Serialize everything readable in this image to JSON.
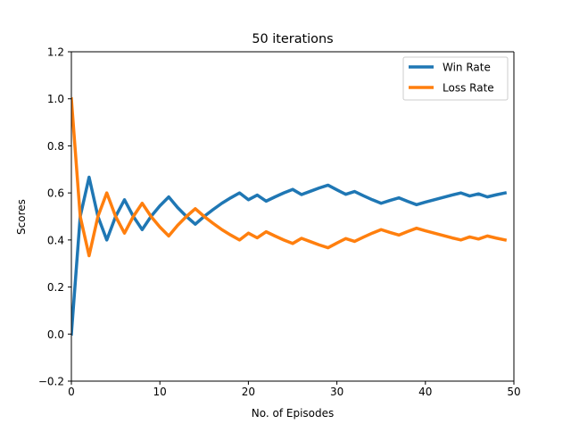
{
  "chart_data": {
    "type": "line",
    "title": "50 iterations",
    "xlabel": "No. of Episodes",
    "ylabel": "Scores",
    "xlim": [
      0,
      50
    ],
    "ylim": [
      -0.2,
      1.2
    ],
    "xticks": [
      0,
      10,
      20,
      30,
      40,
      50
    ],
    "yticks": [
      -0.2,
      0.0,
      0.2,
      0.4,
      0.6,
      0.8,
      1.0,
      1.2
    ],
    "xtick_labels": [
      "0",
      "10",
      "20",
      "30",
      "40",
      "50"
    ],
    "ytick_labels": [
      "−0.2",
      "0.0",
      "0.2",
      "0.4",
      "0.6",
      "0.8",
      "1.0",
      "1.2"
    ],
    "grid": false,
    "legend_position": "top-right",
    "x": [
      0,
      1,
      2,
      3,
      4,
      5,
      6,
      7,
      8,
      9,
      10,
      11,
      12,
      13,
      14,
      15,
      16,
      17,
      18,
      19,
      20,
      21,
      22,
      23,
      24,
      25,
      26,
      27,
      28,
      29,
      30,
      31,
      32,
      33,
      34,
      35,
      36,
      37,
      38,
      39,
      40,
      41,
      42,
      43,
      44,
      45,
      46,
      47,
      48,
      49
    ],
    "series": [
      {
        "name": "Win Rate",
        "color": "#1f77b4",
        "values": [
          0.0,
          0.5,
          0.667,
          0.5,
          0.4,
          0.5,
          0.571,
          0.5,
          0.444,
          0.5,
          0.545,
          0.583,
          0.538,
          0.5,
          0.467,
          0.5,
          0.529,
          0.556,
          0.579,
          0.6,
          0.571,
          0.591,
          0.565,
          0.583,
          0.6,
          0.615,
          0.593,
          0.607,
          0.621,
          0.633,
          0.613,
          0.594,
          0.606,
          0.588,
          0.571,
          0.556,
          0.568,
          0.579,
          0.564,
          0.55,
          0.561,
          0.571,
          0.581,
          0.591,
          0.6,
          0.587,
          0.596,
          0.583,
          0.592,
          0.6
        ]
      },
      {
        "name": "Loss Rate",
        "color": "#ff7f0e",
        "values": [
          1.0,
          0.5,
          0.333,
          0.5,
          0.6,
          0.5,
          0.429,
          0.5,
          0.556,
          0.5,
          0.455,
          0.417,
          0.462,
          0.5,
          0.533,
          0.5,
          0.471,
          0.444,
          0.421,
          0.4,
          0.429,
          0.409,
          0.435,
          0.417,
          0.4,
          0.385,
          0.407,
          0.393,
          0.379,
          0.367,
          0.387,
          0.406,
          0.394,
          0.412,
          0.429,
          0.444,
          0.432,
          0.421,
          0.436,
          0.45,
          0.439,
          0.429,
          0.419,
          0.409,
          0.4,
          0.413,
          0.404,
          0.417,
          0.408,
          0.4
        ]
      }
    ]
  }
}
